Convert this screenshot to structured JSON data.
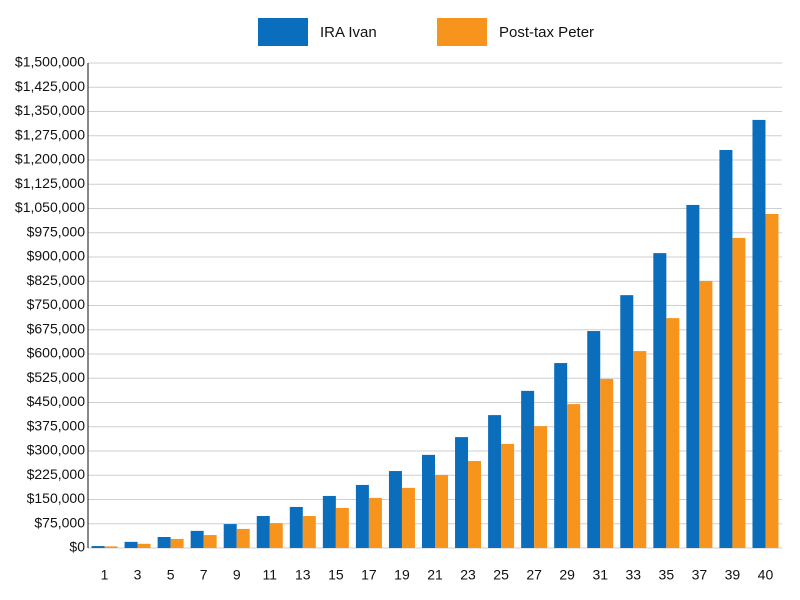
{
  "chart_data": {
    "type": "bar",
    "categories": [
      "1",
      "3",
      "5",
      "7",
      "9",
      "11",
      "13",
      "15",
      "17",
      "19",
      "21",
      "23",
      "25",
      "27",
      "29",
      "31",
      "33",
      "35",
      "37",
      "39",
      "40"
    ],
    "series": [
      {
        "name": "IRA Ivan",
        "color": "#0a6ebd",
        "values": [
          6000,
          19000,
          34000,
          53000,
          74000,
          99000,
          127000,
          161000,
          195000,
          238000,
          288000,
          343000,
          411000,
          486000,
          572000,
          671000,
          782000,
          912000,
          1061000,
          1231000,
          1324000
        ]
      },
      {
        "name": "Post-tax Peter",
        "color": "#f7941d",
        "values": [
          5000,
          13000,
          28000,
          40000,
          59000,
          77000,
          99000,
          124000,
          155000,
          186000,
          226000,
          269000,
          322000,
          377000,
          445000,
          523000,
          609000,
          711000,
          826000,
          959000,
          1033000
        ]
      }
    ],
    "ylim": [
      0,
      1500000
    ],
    "yticks": [
      {
        "value": 0,
        "label": "$0"
      },
      {
        "value": 75000,
        "label": "$75,000"
      },
      {
        "value": 150000,
        "label": "$150,000"
      },
      {
        "value": 225000,
        "label": "$225,000"
      },
      {
        "value": 300000,
        "label": "$300,000"
      },
      {
        "value": 375000,
        "label": "$375,000"
      },
      {
        "value": 450000,
        "label": "$450,000"
      },
      {
        "value": 525000,
        "label": "$525,000"
      },
      {
        "value": 600000,
        "label": "$600,000"
      },
      {
        "value": 675000,
        "label": "$675,000"
      },
      {
        "value": 750000,
        "label": "$750,000"
      },
      {
        "value": 825000,
        "label": "$825,000"
      },
      {
        "value": 900000,
        "label": "$900,000"
      },
      {
        "value": 975000,
        "label": "$975,000"
      },
      {
        "value": 1050000,
        "label": "$1,050,000"
      },
      {
        "value": 1125000,
        "label": "$1,125,000"
      },
      {
        "value": 1200000,
        "label": "$1,200,000"
      },
      {
        "value": 1275000,
        "label": "$1,275,000"
      },
      {
        "value": 1350000,
        "label": "$1,350,000"
      },
      {
        "value": 1425000,
        "label": "$1,425,000"
      },
      {
        "value": 1500000,
        "label": "$1,500,000"
      }
    ],
    "grid": true,
    "legend": "top"
  }
}
